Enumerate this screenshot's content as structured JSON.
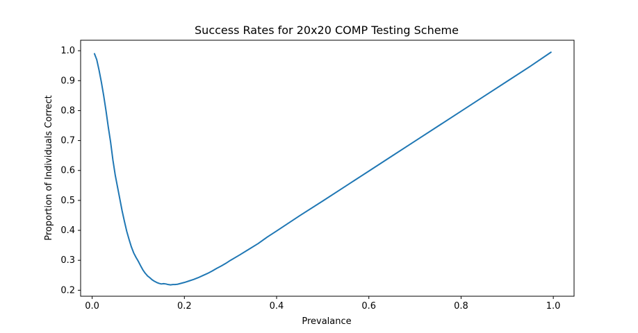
{
  "chart_data": {
    "type": "line",
    "title": "Success Rates for 20x20 COMP Testing Scheme",
    "xlabel": "Prevalance",
    "ylabel": "Proportion of Individuals Correct",
    "xlim": [
      -0.025,
      1.045
    ],
    "ylim": [
      0.18,
      1.035
    ],
    "xticks": [
      0.0,
      0.2,
      0.4,
      0.6,
      0.8,
      1.0
    ],
    "xtick_labels": [
      "0.0",
      "0.2",
      "0.4",
      "0.6",
      "0.8",
      "1.0"
    ],
    "yticks": [
      0.2,
      0.3,
      0.4,
      0.5,
      0.6,
      0.7,
      0.8,
      0.9,
      1.0
    ],
    "ytick_labels": [
      "0.2",
      "0.3",
      "0.4",
      "0.5",
      "0.6",
      "0.7",
      "0.8",
      "0.9",
      "1.0"
    ],
    "grid": false,
    "series": [
      {
        "color": "#1f77b4",
        "x": [
          0.005,
          0.01,
          0.015,
          0.02,
          0.025,
          0.03,
          0.035,
          0.04,
          0.045,
          0.05,
          0.055,
          0.06,
          0.065,
          0.07,
          0.075,
          0.08,
          0.085,
          0.09,
          0.095,
          0.1,
          0.105,
          0.11,
          0.115,
          0.12,
          0.125,
          0.13,
          0.135,
          0.14,
          0.145,
          0.15,
          0.155,
          0.16,
          0.165,
          0.17,
          0.175,
          0.18,
          0.185,
          0.19,
          0.2,
          0.21,
          0.22,
          0.23,
          0.24,
          0.25,
          0.26,
          0.27,
          0.28,
          0.29,
          0.3,
          0.32,
          0.34,
          0.36,
          0.38,
          0.4,
          0.45,
          0.5,
          0.55,
          0.6,
          0.65,
          0.7,
          0.75,
          0.8,
          0.85,
          0.9,
          0.95,
          0.995
        ],
        "y": [
          0.99,
          0.97,
          0.935,
          0.895,
          0.85,
          0.8,
          0.745,
          0.695,
          0.635,
          0.585,
          0.545,
          0.505,
          0.465,
          0.43,
          0.397,
          0.37,
          0.345,
          0.325,
          0.31,
          0.297,
          0.282,
          0.268,
          0.257,
          0.248,
          0.242,
          0.235,
          0.23,
          0.226,
          0.223,
          0.221,
          0.222,
          0.221,
          0.219,
          0.218,
          0.219,
          0.219,
          0.22,
          0.222,
          0.226,
          0.231,
          0.236,
          0.242,
          0.249,
          0.256,
          0.264,
          0.273,
          0.281,
          0.29,
          0.3,
          0.318,
          0.337,
          0.356,
          0.378,
          0.398,
          0.449,
          0.498,
          0.548,
          0.598,
          0.648,
          0.698,
          0.748,
          0.798,
          0.848,
          0.898,
          0.948,
          0.995
        ]
      }
    ]
  }
}
